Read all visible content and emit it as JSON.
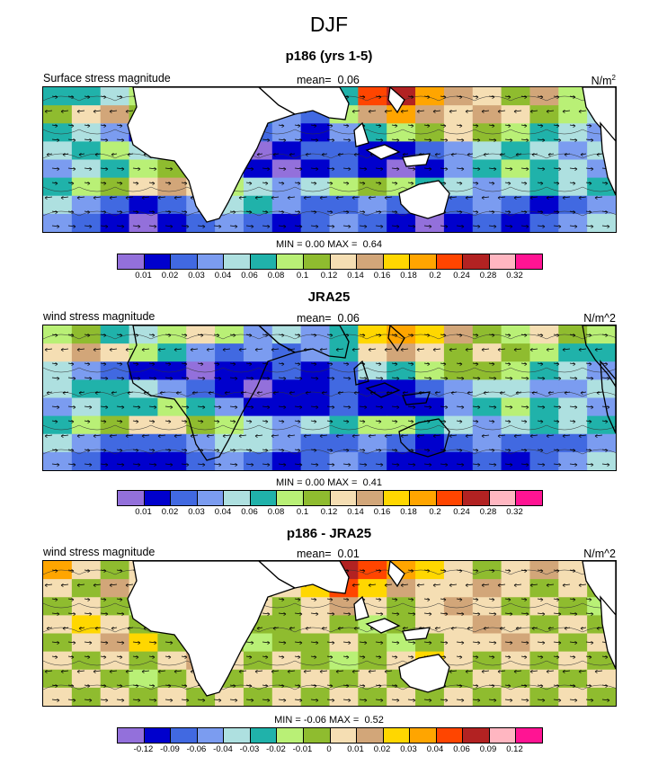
{
  "title": "DJF",
  "colors": {
    "abs_scale": [
      "#9370db",
      "#0000cd",
      "#4169e1",
      "#7b9cf0",
      "#aee0e0",
      "#20b2aa",
      "#b9f076",
      "#8fbc2f",
      "#f5deb3",
      "#d2a679",
      "#ffd700",
      "#ffa500",
      "#ff4500",
      "#b22222",
      "#ffb6c1",
      "#ff1493"
    ],
    "diff_scale": [
      "#9370db",
      "#0000cd",
      "#4169e1",
      "#7b9cf0",
      "#aee0e0",
      "#20b2aa",
      "#b9f076",
      "#8fbc2f",
      "#f5deb3",
      "#d2a679",
      "#ffd700",
      "#ffa500",
      "#ff4500",
      "#b22222",
      "#ffb6c1",
      "#ff1493"
    ],
    "land": "#ffffff"
  },
  "chart_data": [
    {
      "type": "heatmap",
      "title": "p186 (yrs 1-5)",
      "left_label": "Surface stress magnitude",
      "mean_label": "mean=",
      "mean_value": "0.06",
      "units_base": "N/m",
      "units_sup": "2",
      "min_max": {
        "min_label": "MIN =",
        "min": "0.00",
        "max_label": "MAX =",
        "max": "0.64"
      },
      "levels": [
        "0.01",
        "0.02",
        "0.03",
        "0.04",
        "0.06",
        "0.08",
        "0.1",
        "0.12",
        "0.14",
        "0.16",
        "0.18",
        "0.2",
        "0.24",
        "0.28",
        "0.32"
      ],
      "field": [
        [
          5,
          5,
          4,
          6,
          8,
          9,
          7,
          4,
          4,
          3,
          5,
          12,
          13,
          11,
          9,
          8,
          7,
          9,
          6,
          5
        ],
        [
          7,
          8,
          9,
          7,
          6,
          5,
          4,
          5,
          3,
          2,
          6,
          9,
          11,
          9,
          8,
          9,
          8,
          7,
          6,
          4
        ],
        [
          5,
          4,
          3,
          1,
          2,
          0,
          1,
          2,
          3,
          1,
          3,
          5,
          6,
          7,
          8,
          7,
          6,
          5,
          4,
          3
        ],
        [
          4,
          5,
          6,
          4,
          3,
          2,
          1,
          0,
          1,
          2,
          2,
          1,
          1,
          2,
          3,
          4,
          5,
          4,
          3,
          4
        ],
        [
          3,
          4,
          5,
          6,
          7,
          6,
          3,
          1,
          0,
          1,
          2,
          1,
          0,
          1,
          3,
          5,
          6,
          5,
          4,
          3
        ],
        [
          5,
          6,
          7,
          8,
          9,
          8,
          6,
          4,
          3,
          4,
          6,
          7,
          6,
          5,
          4,
          3,
          4,
          5,
          4,
          5
        ],
        [
          4,
          3,
          2,
          1,
          2,
          3,
          4,
          5,
          3,
          2,
          2,
          3,
          2,
          1,
          2,
          3,
          2,
          1,
          2,
          3
        ],
        [
          3,
          2,
          1,
          0,
          1,
          2,
          3,
          2,
          1,
          2,
          3,
          2,
          1,
          0,
          1,
          2,
          1,
          2,
          3,
          4
        ]
      ]
    },
    {
      "type": "heatmap",
      "title": "JRA25",
      "left_label": "wind stress magnitude",
      "mean_label": "mean=",
      "mean_value": "0.06",
      "units": "N/m^2",
      "min_max": {
        "min_label": "MIN =",
        "min": "0.00",
        "max_label": "MAX =",
        "max": "0.41"
      },
      "levels": [
        "0.01",
        "0.02",
        "0.03",
        "0.04",
        "0.06",
        "0.08",
        "0.1",
        "0.12",
        "0.14",
        "0.16",
        "0.18",
        "0.2",
        "0.24",
        "0.28",
        "0.32"
      ],
      "field": [
        [
          6,
          7,
          5,
          4,
          6,
          8,
          6,
          3,
          4,
          3,
          5,
          10,
          11,
          10,
          9,
          7,
          6,
          8,
          7,
          6
        ],
        [
          8,
          9,
          8,
          6,
          5,
          3,
          2,
          3,
          2,
          3,
          5,
          8,
          9,
          8,
          7,
          8,
          7,
          6,
          5,
          5
        ],
        [
          4,
          3,
          2,
          1,
          1,
          0,
          1,
          1,
          2,
          1,
          2,
          4,
          5,
          6,
          7,
          7,
          6,
          5,
          4,
          3
        ],
        [
          4,
          5,
          5,
          4,
          3,
          2,
          1,
          0,
          1,
          1,
          2,
          1,
          1,
          2,
          3,
          4,
          4,
          3,
          3,
          4
        ],
        [
          3,
          4,
          5,
          5,
          6,
          5,
          3,
          1,
          1,
          1,
          2,
          1,
          1,
          1,
          3,
          5,
          6,
          5,
          4,
          3
        ],
        [
          5,
          6,
          7,
          8,
          8,
          7,
          6,
          4,
          3,
          4,
          5,
          6,
          6,
          5,
          4,
          3,
          4,
          5,
          4,
          5
        ],
        [
          4,
          3,
          2,
          2,
          2,
          3,
          4,
          4,
          3,
          2,
          2,
          3,
          2,
          1,
          2,
          3,
          2,
          2,
          2,
          3
        ],
        [
          3,
          2,
          1,
          1,
          1,
          2,
          3,
          2,
          1,
          2,
          3,
          2,
          1,
          1,
          1,
          2,
          1,
          2,
          3,
          4
        ]
      ]
    },
    {
      "type": "heatmap",
      "title": "p186 - JRA25",
      "left_label": "wind stress magnitude",
      "mean_label": "mean=",
      "mean_value": "0.01",
      "units": "N/m^2",
      "min_max": {
        "min_label": "MIN =",
        "min": "-0.06",
        "max_label": "MAX =",
        "max": "0.52"
      },
      "levels": [
        "-0.12",
        "-0.09",
        "-0.06",
        "-0.04",
        "-0.03",
        "-0.02",
        "-0.01",
        "0",
        "0.01",
        "0.02",
        "0.03",
        "0.04",
        "0.06",
        "0.09",
        "0.12"
      ],
      "field": [
        [
          11,
          8,
          7,
          8,
          9,
          8,
          7,
          7,
          8,
          7,
          13,
          12,
          11,
          10,
          8,
          7,
          8,
          9,
          8,
          7
        ],
        [
          8,
          7,
          9,
          8,
          7,
          7,
          8,
          7,
          8,
          10,
          12,
          10,
          9,
          8,
          8,
          9,
          8,
          7,
          8,
          7
        ],
        [
          7,
          8,
          7,
          6,
          7,
          8,
          7,
          8,
          7,
          8,
          9,
          8,
          7,
          8,
          9,
          8,
          7,
          8,
          7,
          6
        ],
        [
          8,
          10,
          8,
          7,
          6,
          7,
          8,
          7,
          7,
          8,
          7,
          6,
          7,
          8,
          8,
          9,
          8,
          7,
          8,
          7
        ],
        [
          7,
          8,
          9,
          10,
          7,
          8,
          7,
          6,
          7,
          7,
          8,
          7,
          6,
          7,
          8,
          8,
          9,
          8,
          7,
          8
        ],
        [
          8,
          7,
          8,
          7,
          8,
          9,
          8,
          7,
          8,
          7,
          6,
          7,
          8,
          10,
          8,
          7,
          8,
          7,
          8,
          7
        ],
        [
          7,
          8,
          7,
          6,
          7,
          8,
          7,
          8,
          7,
          8,
          7,
          8,
          7,
          6,
          7,
          8,
          7,
          8,
          7,
          8
        ],
        [
          8,
          7,
          8,
          7,
          8,
          7,
          8,
          7,
          8,
          7,
          8,
          7,
          8,
          7,
          8,
          7,
          8,
          7,
          8,
          7
        ]
      ]
    }
  ]
}
